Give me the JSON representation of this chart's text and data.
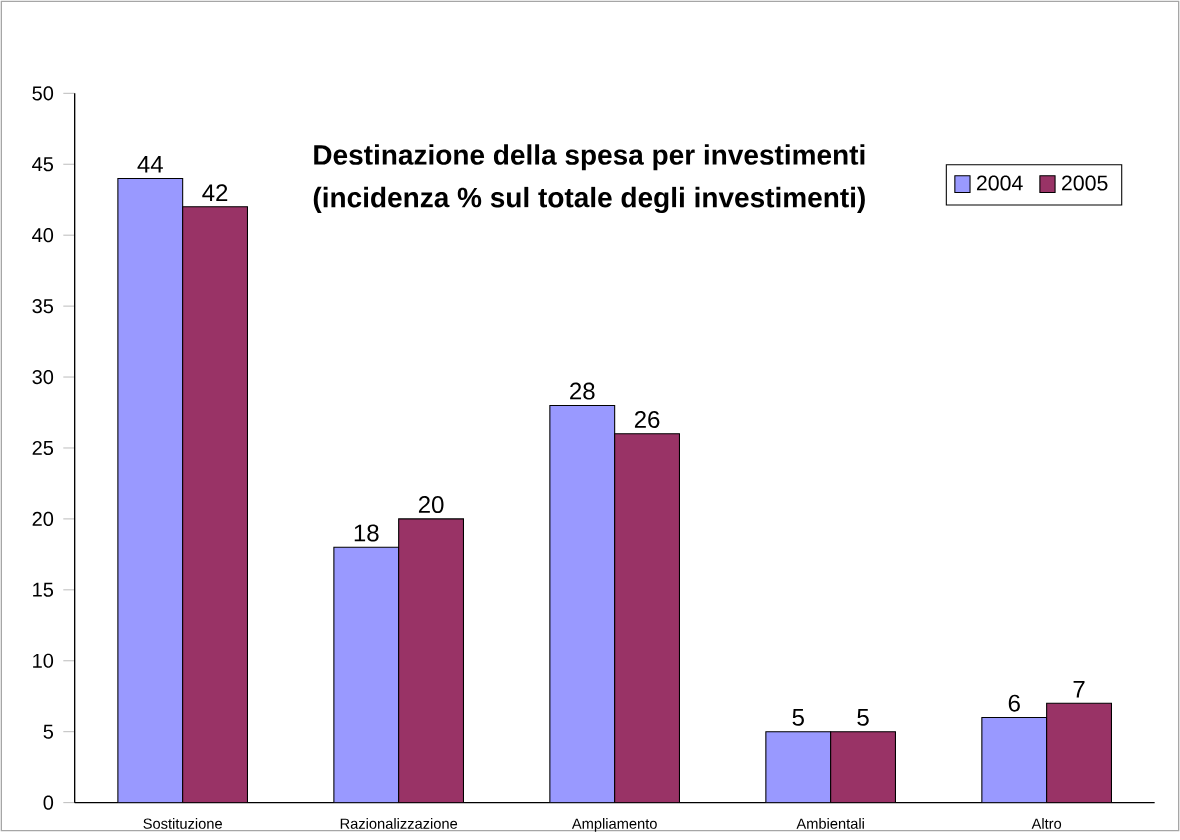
{
  "chart_data": {
    "type": "bar",
    "title": "Destinazione della spesa per investimenti",
    "subtitle": "(incidenza % sul totale degli investimenti)",
    "categories": [
      "Sostituzione",
      "Razionalizzazione",
      "Ampliamento",
      "Ambientali",
      "Altro"
    ],
    "series": [
      {
        "name": "2004",
        "color": "#9999ff",
        "values": [
          44,
          18,
          28,
          5,
          6
        ]
      },
      {
        "name": "2005",
        "color": "#993366",
        "values": [
          42,
          20,
          26,
          5,
          7
        ]
      }
    ],
    "ylim": [
      0,
      50
    ],
    "yticks": [
      0,
      5,
      10,
      15,
      20,
      25,
      30,
      35,
      40,
      45,
      50
    ],
    "data_labels": true,
    "legend": "top right",
    "grid": false
  }
}
